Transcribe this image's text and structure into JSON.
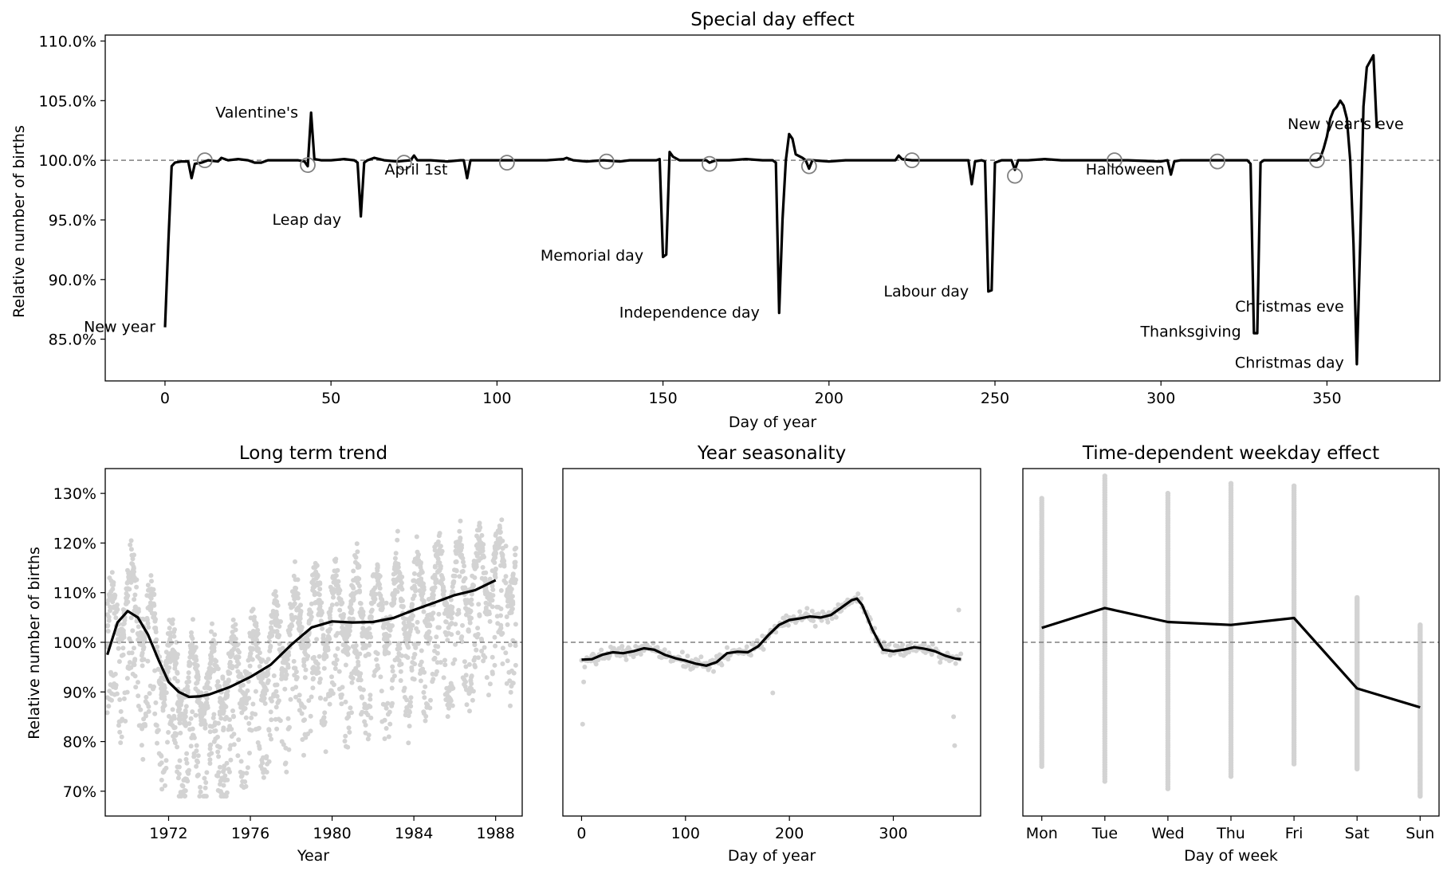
{
  "figure": {
    "background": "#ffffff",
    "line_color": "#000000",
    "scatter_color": "#d3d3d3",
    "ref_line_color": "#808080",
    "marker_color": "#808080"
  },
  "chart_data": [
    {
      "id": "special",
      "type": "line",
      "title": "Special day effect",
      "xlabel": "Day of year",
      "ylabel": "Relative number of births",
      "xlim": [
        -18,
        384
      ],
      "ylim": [
        81.5,
        110.5
      ],
      "xticks": [
        0,
        50,
        100,
        150,
        200,
        250,
        300,
        350
      ],
      "xtick_labels": [
        "0",
        "50",
        "100",
        "150",
        "200",
        "250",
        "300",
        "350"
      ],
      "yticks": [
        85,
        90,
        95,
        100,
        105,
        110
      ],
      "ytick_labels": [
        "85.0%",
        "90.0%",
        "95.0%",
        "100.0%",
        "105.0%",
        "110.0%"
      ],
      "reference_line": 100,
      "series": [
        {
          "points": [
            [
              0,
              86
            ],
            [
              1,
              93
            ],
            [
              2,
              99.5
            ],
            [
              3,
              99.8
            ],
            [
              5,
              99.9
            ],
            [
              7,
              99.9
            ],
            [
              8,
              98.5
            ],
            [
              9,
              99.7
            ],
            [
              11,
              99.8
            ],
            [
              13,
              100
            ],
            [
              16,
              99.9
            ],
            [
              17,
              100.2
            ],
            [
              19,
              100
            ],
            [
              22,
              100.1
            ],
            [
              25,
              100
            ],
            [
              27,
              99.8
            ],
            [
              29,
              99.8
            ],
            [
              31,
              100
            ],
            [
              34,
              100
            ],
            [
              38,
              100
            ],
            [
              40,
              100
            ],
            [
              42,
              99.9
            ],
            [
              43,
              99.5
            ],
            [
              44,
              104
            ],
            [
              45,
              100.1
            ],
            [
              47,
              100
            ],
            [
              50,
              100
            ],
            [
              54,
              100.1
            ],
            [
              57,
              100
            ],
            [
              58,
              99.8
            ],
            [
              59,
              95.3
            ],
            [
              60,
              99.8
            ],
            [
              61,
              100
            ],
            [
              63,
              100.2
            ],
            [
              66,
              100
            ],
            [
              70,
              99.9
            ],
            [
              74,
              100
            ],
            [
              75,
              100.4
            ],
            [
              76,
              100
            ],
            [
              80,
              100
            ],
            [
              85,
              99.9
            ],
            [
              89,
              100
            ],
            [
              90,
              100
            ],
            [
              91,
              98.5
            ],
            [
              92,
              100
            ],
            [
              96,
              100
            ],
            [
              100,
              100
            ],
            [
              105,
              100
            ],
            [
              110,
              100
            ],
            [
              115,
              100
            ],
            [
              120,
              100.1
            ],
            [
              121,
              100.2
            ],
            [
              123,
              100
            ],
            [
              127,
              99.9
            ],
            [
              132,
              100
            ],
            [
              137,
              99.9
            ],
            [
              140,
              100
            ],
            [
              145,
              100
            ],
            [
              148,
              100
            ],
            [
              149,
              100.1
            ],
            [
              150,
              91.9
            ],
            [
              151,
              92.1
            ],
            [
              152,
              100.7
            ],
            [
              153,
              100.3
            ],
            [
              155,
              100
            ],
            [
              160,
              100
            ],
            [
              163,
              100
            ],
            [
              164,
              99.8
            ],
            [
              166,
              100
            ],
            [
              170,
              100
            ],
            [
              175,
              100.1
            ],
            [
              180,
              100
            ],
            [
              183,
              100
            ],
            [
              184,
              99.8
            ],
            [
              185,
              87.2
            ],
            [
              186,
              95
            ],
            [
              187,
              100
            ],
            [
              188,
              102.2
            ],
            [
              189,
              101.8
            ],
            [
              190,
              100.5
            ],
            [
              192,
              100.2
            ],
            [
              193,
              100
            ],
            [
              194,
              99.3
            ],
            [
              195,
              100
            ],
            [
              200,
              99.9
            ],
            [
              205,
              100
            ],
            [
              210,
              100
            ],
            [
              215,
              100
            ],
            [
              218,
              100
            ],
            [
              220,
              100
            ],
            [
              221,
              100.4
            ],
            [
              222,
              100.1
            ],
            [
              225,
              100
            ],
            [
              230,
              100
            ],
            [
              235,
              100
            ],
            [
              240,
              100
            ],
            [
              242,
              100
            ],
            [
              243,
              98
            ],
            [
              244,
              99.9
            ],
            [
              246,
              100
            ],
            [
              247,
              99.9
            ],
            [
              248,
              89
            ],
            [
              249,
              89.1
            ],
            [
              250,
              99.8
            ],
            [
              252,
              100
            ],
            [
              255,
              100
            ],
            [
              256,
              99.2
            ],
            [
              257,
              100
            ],
            [
              260,
              100
            ],
            [
              265,
              100.1
            ],
            [
              270,
              100
            ],
            [
              280,
              100
            ],
            [
              290,
              100
            ],
            [
              300,
              99.9
            ],
            [
              302,
              100
            ],
            [
              303,
              98.8
            ],
            [
              304,
              99.9
            ],
            [
              306,
              100
            ],
            [
              310,
              100
            ],
            [
              315,
              100
            ],
            [
              320,
              100
            ],
            [
              325,
              100
            ],
            [
              326,
              100
            ],
            [
              327,
              99.7
            ],
            [
              328,
              85.5
            ],
            [
              329,
              85.5
            ],
            [
              330,
              99.8
            ],
            [
              331,
              100
            ],
            [
              335,
              100
            ],
            [
              340,
              100
            ],
            [
              345,
              100
            ],
            [
              347,
              100
            ],
            [
              348,
              100.2
            ],
            [
              349,
              101
            ],
            [
              350,
              102
            ],
            [
              351,
              103.5
            ],
            [
              352,
              104.2
            ],
            [
              353,
              104.5
            ],
            [
              354,
              105
            ],
            [
              355,
              104.6
            ],
            [
              356,
              103.5
            ],
            [
              357,
              100
            ],
            [
              358,
              93
            ],
            [
              359,
              82.9
            ],
            [
              360,
              93
            ],
            [
              361,
              104.5
            ],
            [
              362,
              107.8
            ],
            [
              364,
              108.8
            ],
            [
              365,
              102.7
            ]
          ]
        }
      ],
      "markers": [
        [
          12,
          100
        ],
        [
          43,
          99.6
        ],
        [
          72,
          99.8
        ],
        [
          103,
          99.8
        ],
        [
          133,
          99.9
        ],
        [
          164,
          99.7
        ],
        [
          194,
          99.5
        ],
        [
          225,
          100
        ],
        [
          256,
          98.7
        ],
        [
          286,
          100
        ],
        [
          317,
          99.9
        ],
        [
          347,
          100
        ]
      ],
      "annotations": [
        {
          "text": "New year",
          "x": 0,
          "y": 86,
          "anchor": "end"
        },
        {
          "text": "Valentine's",
          "x": 43,
          "y": 104,
          "anchor": "end"
        },
        {
          "text": "Leap day",
          "x": 56,
          "y": 95,
          "anchor": "end"
        },
        {
          "text": "April 1st",
          "x": 88,
          "y": 99.2,
          "anchor": "end"
        },
        {
          "text": "Memorial day",
          "x": 147,
          "y": 92,
          "anchor": "end"
        },
        {
          "text": "Independence day",
          "x": 182,
          "y": 87.2,
          "anchor": "end"
        },
        {
          "text": "Labour day",
          "x": 245,
          "y": 89,
          "anchor": "end"
        },
        {
          "text": "Halloween",
          "x": 304,
          "y": 99.2,
          "anchor": "end"
        },
        {
          "text": "New year's eve",
          "x": 376,
          "y": 103,
          "anchor": "end"
        },
        {
          "text": "Christmas eve",
          "x": 358,
          "y": 87.7,
          "anchor": "end"
        },
        {
          "text": "Thanksgiving",
          "x": 327,
          "y": 85.6,
          "anchor": "end"
        },
        {
          "text": "Christmas day",
          "x": 358,
          "y": 83,
          "anchor": "end"
        }
      ]
    },
    {
      "id": "trend",
      "type": "scatter",
      "title": "Long term trend",
      "xlabel": "Year",
      "ylabel": "Relative number of births",
      "xlim": [
        1968.9,
        1989.3
      ],
      "ylim": [
        65,
        135
      ],
      "xticks": [
        1972,
        1976,
        1980,
        1984,
        1988
      ],
      "xtick_labels": [
        "1972",
        "1976",
        "1980",
        "1984",
        "1988"
      ],
      "yticks": [
        70,
        80,
        90,
        100,
        110,
        120,
        130
      ],
      "ytick_labels": [
        "70%",
        "80%",
        "90%",
        "100%",
        "110%",
        "120%",
        "130%"
      ],
      "reference_line": 100,
      "scatter_band_x": [
        1969,
        1989
      ],
      "series": [
        {
          "points": [
            [
              1969,
              97.5
            ],
            [
              1969.5,
              104
            ],
            [
              1970,
              106.3
            ],
            [
              1970.5,
              105
            ],
            [
              1971,
              101.5
            ],
            [
              1971.5,
              96.5
            ],
            [
              1972,
              92
            ],
            [
              1972.5,
              90
            ],
            [
              1973,
              89
            ],
            [
              1973.5,
              89.1
            ],
            [
              1974,
              89.5
            ],
            [
              1975,
              91
            ],
            [
              1976,
              93
            ],
            [
              1977,
              95.5
            ],
            [
              1978,
              99.5
            ],
            [
              1979,
              103
            ],
            [
              1980,
              104.2
            ],
            [
              1981,
              104
            ],
            [
              1982,
              104.1
            ],
            [
              1983,
              104.9
            ],
            [
              1984,
              106.5
            ],
            [
              1985,
              108
            ],
            [
              1986,
              109.5
            ],
            [
              1987,
              110.5
            ],
            [
              1988,
              112.5
            ]
          ]
        }
      ]
    },
    {
      "id": "season",
      "type": "scatter",
      "title": "Year seasonality",
      "xlabel": "Day of year",
      "xlim": [
        -18,
        384
      ],
      "ylim": [
        65,
        135
      ],
      "xticks": [
        0,
        100,
        200,
        300
      ],
      "xtick_labels": [
        "0",
        "100",
        "200",
        "300"
      ],
      "reference_line": 100,
      "series": [
        {
          "points": [
            [
              0,
              96.5
            ],
            [
              10,
              96.6
            ],
            [
              20,
              97.5
            ],
            [
              30,
              98
            ],
            [
              40,
              97.8
            ],
            [
              50,
              98.2
            ],
            [
              60,
              98.8
            ],
            [
              70,
              98.5
            ],
            [
              80,
              97.5
            ],
            [
              90,
              96.8
            ],
            [
              100,
              96.3
            ],
            [
              110,
              95.7
            ],
            [
              120,
              95.3
            ],
            [
              130,
              96
            ],
            [
              140,
              97.8
            ],
            [
              150,
              98.1
            ],
            [
              160,
              98
            ],
            [
              170,
              99.2
            ],
            [
              180,
              101.5
            ],
            [
              190,
              103.5
            ],
            [
              200,
              104.5
            ],
            [
              210,
              104.8
            ],
            [
              220,
              105.2
            ],
            [
              230,
              105
            ],
            [
              240,
              105.5
            ],
            [
              250,
              107
            ],
            [
              260,
              108.5
            ],
            [
              265,
              108.8
            ],
            [
              270,
              107.5
            ],
            [
              280,
              102.5
            ],
            [
              290,
              98.5
            ],
            [
              300,
              98.2
            ],
            [
              310,
              98.5
            ],
            [
              320,
              99
            ],
            [
              330,
              98.7
            ],
            [
              340,
              98.2
            ],
            [
              350,
              97.3
            ],
            [
              360,
              96.7
            ],
            [
              365,
              96.6
            ]
          ]
        }
      ]
    },
    {
      "id": "weekday",
      "type": "scatter",
      "title": "Time-dependent weekday effect",
      "xlabel": "Day of week",
      "ylim": [
        65,
        135
      ],
      "categories": [
        "Mon",
        "Tue",
        "Wed",
        "Thu",
        "Fri",
        "Sat",
        "Sun"
      ],
      "reference_line": 100,
      "series": [
        {
          "values": [
            102.9,
            106.9,
            104.1,
            103.5,
            104.9,
            90.7,
            86.9
          ]
        }
      ],
      "spread": [
        [
          75,
          129
        ],
        [
          72,
          133.5
        ],
        [
          70.5,
          130
        ],
        [
          73,
          132
        ],
        [
          75.5,
          131.5
        ],
        [
          74.5,
          109
        ],
        [
          69,
          103.5
        ]
      ]
    }
  ]
}
